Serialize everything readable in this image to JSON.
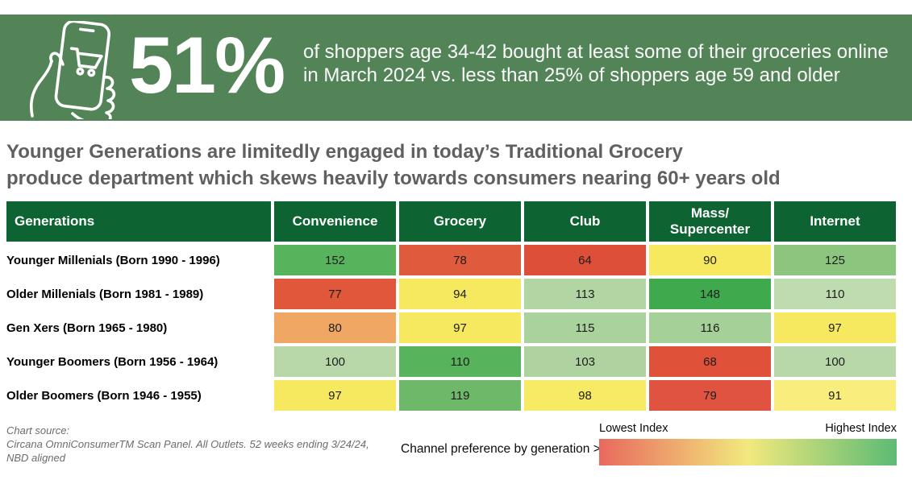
{
  "banner": {
    "bg_color": "#538457",
    "stat_value": "51%",
    "description": "of shoppers age 34-42 bought at least some of their groceries online in March 2024 vs. less than 25% of shoppers age 59 and older",
    "icon": "hand-holding-phone-shopping-cart-icon"
  },
  "headline": {
    "lines": [
      "Younger Generations are limitedly engaged in today’s Traditional Grocery",
      "produce department which skews heavily towards consumers nearing 60+ years old"
    ]
  },
  "table": {
    "header_bg": "#0e6333",
    "columns": [
      "Generations",
      "Convenience",
      "Grocery",
      "Club",
      "Mass/ Supercenter",
      "Internet"
    ],
    "rows": [
      {
        "label": "Younger Millenials (Born 1990 - 1996)",
        "cells": [
          {
            "value": "152",
            "color": "#57b45c"
          },
          {
            "value": "78",
            "color": "#e05a3d"
          },
          {
            "value": "64",
            "color": "#dd4f38"
          },
          {
            "value": "90",
            "color": "#f6e95f"
          },
          {
            "value": "125",
            "color": "#8cc57e"
          }
        ]
      },
      {
        "label": "Older Millenials (Born 1981 - 1989)",
        "cells": [
          {
            "value": "77",
            "color": "#e0573c"
          },
          {
            "value": "94",
            "color": "#f6e95f"
          },
          {
            "value": "113",
            "color": "#b1d5a3"
          },
          {
            "value": "148",
            "color": "#3fa94d"
          },
          {
            "value": "110",
            "color": "#bedcb0"
          }
        ]
      },
      {
        "label": "Gen Xers (Born 1965 - 1980)",
        "cells": [
          {
            "value": "80",
            "color": "#efa763"
          },
          {
            "value": "97",
            "color": "#f6e95f"
          },
          {
            "value": "115",
            "color": "#aad29d"
          },
          {
            "value": "116",
            "color": "#a5d098"
          },
          {
            "value": "97",
            "color": "#f6e95f"
          }
        ]
      },
      {
        "label": "Younger Boomers (Born 1956 - 1964)",
        "cells": [
          {
            "value": "100",
            "color": "#b8d8aa"
          },
          {
            "value": "110",
            "color": "#58b45c"
          },
          {
            "value": "103",
            "color": "#aed3a1"
          },
          {
            "value": "68",
            "color": "#df5138"
          },
          {
            "value": "100",
            "color": "#b8d8aa"
          }
        ]
      },
      {
        "label": "Older Boomers (Born 1946 - 1955)",
        "cells": [
          {
            "value": "97",
            "color": "#f6e95f"
          },
          {
            "value": "119",
            "color": "#6eb969"
          },
          {
            "value": "98",
            "color": "#f7eb66"
          },
          {
            "value": "79",
            "color": "#df5340"
          },
          {
            "value": "91",
            "color": "#f9ee7d"
          }
        ]
      }
    ]
  },
  "footer": {
    "source_lines": [
      "Chart source:",
      "Circana OmniConsumerTM Scan Panel. All Outlets. 52 weeks ending 3/24/24,",
      "NBD aligned"
    ],
    "legend_label": "Channel preference by generation >",
    "legend_low": "Lowest Index",
    "legend_high": "Highest Index",
    "gradient": [
      "#e9695d",
      "#f2e97d",
      "#5cbb74"
    ]
  },
  "chart_data": {
    "type": "heatmap",
    "title": "Younger Generations are limitedly engaged in today’s Traditional Grocery produce department which skews heavily towards consumers nearing 60+ years old",
    "stat_callout": {
      "value": "51%",
      "text": "of shoppers age 34-42 bought at least some of their groceries online in March 2024 vs. less than 25% of shoppers age 59 and older"
    },
    "categories": [
      "Convenience",
      "Grocery",
      "Club",
      "Mass/Supercenter",
      "Internet"
    ],
    "rows": [
      "Younger Millenials (Born 1990 - 1996)",
      "Older Millenials (Born 1981 - 1989)",
      "Gen Xers (Born 1965 - 1980)",
      "Younger Boomers (Born 1956 - 1964)",
      "Older Boomers (Born 1946 - 1955)"
    ],
    "values": [
      [
        152,
        78,
        64,
        90,
        125
      ],
      [
        77,
        94,
        113,
        148,
        110
      ],
      [
        80,
        97,
        115,
        116,
        97
      ],
      [
        100,
        110,
        103,
        68,
        100
      ],
      [
        97,
        119,
        98,
        79,
        91
      ]
    ],
    "legend": {
      "low_label": "Lowest Index",
      "high_label": "Highest Index",
      "position": "bottom-right"
    },
    "color_scale": {
      "low": "#e9695d",
      "mid": "#f2e97d",
      "high": "#3fa94d"
    },
    "source": "Circana OmniConsumerTM Scan Panel. All Outlets. 52 weeks ending 3/24/24, NBD aligned"
  }
}
